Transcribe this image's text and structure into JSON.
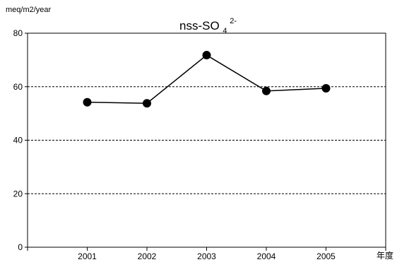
{
  "chart_data": {
    "type": "line",
    "title": "nss-SO",
    "title_subscript": "4",
    "title_superscript": "2-",
    "ylabel": "meq/m2/year",
    "xlabel": "年度",
    "x_tick_labels": [
      "2001",
      "2002",
      "2003",
      "2004",
      "2005"
    ],
    "x_domain": [
      2000,
      2006
    ],
    "ylim": [
      0,
      80
    ],
    "y_ticks": [
      0,
      20,
      40,
      60,
      80
    ],
    "grid": "horizontal-dashed",
    "series": [
      {
        "x": [
          2001,
          2002,
          2003,
          2004,
          2005
        ],
        "values": [
          54.2,
          53.8,
          71.8,
          58.4,
          59.4
        ]
      }
    ],
    "colors": {
      "line": "#000000",
      "marker": "#000000",
      "grid": "#000000"
    }
  }
}
